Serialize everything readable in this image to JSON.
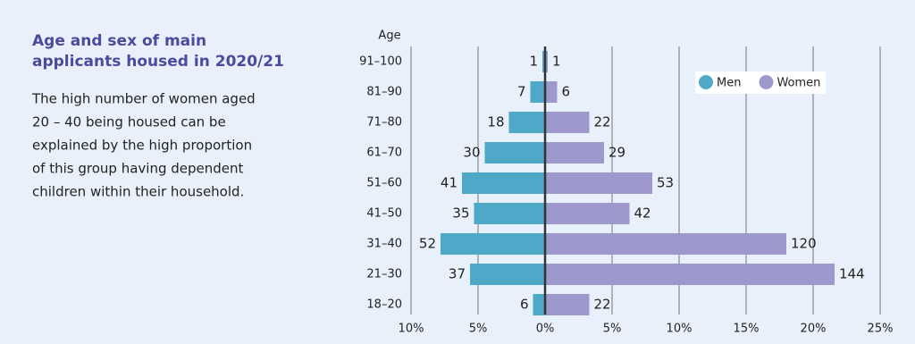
{
  "chart_data": {
    "type": "pyramid",
    "title": [
      "Age and sex of main",
      "applicants housed in 2020/21"
    ],
    "description": [
      "The high number of women aged",
      "20 – 40 being housed can be",
      "explained by the high proportion",
      "of this group having dependent",
      "children within their household."
    ],
    "y_label": "Age",
    "categories": [
      "91–100",
      "81–90",
      "71–80",
      "61–70",
      "51–60",
      "41–50",
      "31–40",
      "21–30",
      "18–20"
    ],
    "series": [
      {
        "name": "Men",
        "color": "#4fa8c8",
        "side": "left",
        "values": [
          0.2,
          1.1,
          2.7,
          4.5,
          6.2,
          5.3,
          7.8,
          5.6,
          0.9
        ],
        "counts": [
          1,
          7,
          18,
          30,
          41,
          35,
          52,
          37,
          6
        ]
      },
      {
        "name": "Women",
        "color": "#9d99cc",
        "side": "right",
        "values": [
          0.2,
          0.9,
          3.3,
          4.4,
          8.0,
          6.3,
          18.0,
          21.6,
          3.3
        ],
        "counts": [
          1,
          6,
          22,
          29,
          53,
          42,
          120,
          144,
          22
        ]
      }
    ],
    "xlim": [
      -10,
      25
    ],
    "xticks": [
      {
        "value": -10,
        "label": "10%"
      },
      {
        "value": -5,
        "label": "5%"
      },
      {
        "value": 0,
        "label": "0%"
      },
      {
        "value": 5,
        "label": "5%"
      },
      {
        "value": 10,
        "label": "10%"
      },
      {
        "value": 15,
        "label": "15%"
      },
      {
        "value": 20,
        "label": "20%"
      },
      {
        "value": 25,
        "label": "25%"
      }
    ],
    "grid": true,
    "legend": "top-right"
  }
}
